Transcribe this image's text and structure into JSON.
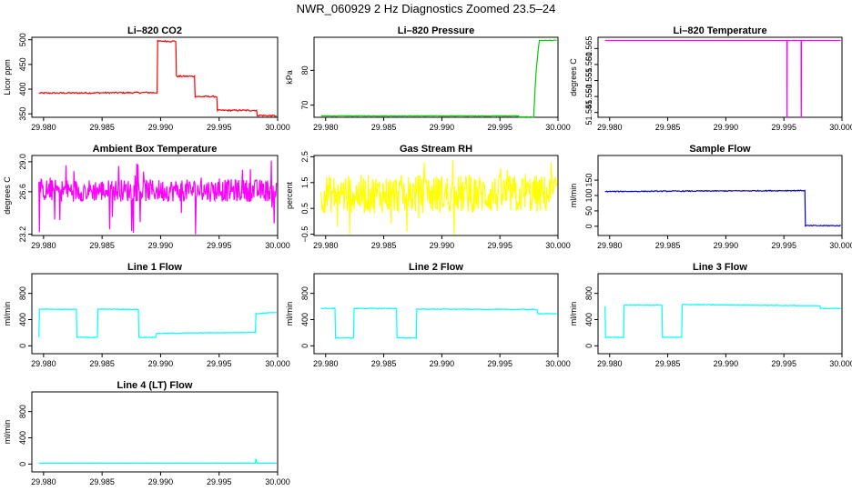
{
  "title": "NWR_060929  2 Hz Diagnostics Zoomed 23.5–24",
  "colors": {
    "red": "#ff0000",
    "green": "#00cc00",
    "magenta": "#ff00ff",
    "yellow": "#ffff00",
    "blue": "#0000cc",
    "cyan": "#00ffff"
  },
  "chart_data": [
    {
      "type": "line",
      "title": "Li–820 CO2",
      "ylabel": "Licor ppm",
      "xlim": [
        29.979,
        30.0
      ],
      "ylim": [
        343,
        505
      ],
      "xticks": [
        "29.980",
        "29.985",
        "29.990",
        "29.995",
        "30.000"
      ],
      "yticks": [
        {
          "v": 350,
          "t": "350"
        },
        {
          "v": 400,
          "t": "400"
        },
        {
          "v": 450,
          "t": "450"
        },
        {
          "v": 500,
          "t": "500"
        }
      ],
      "color": "red",
      "noise": 1.5,
      "x": [
        29.9796,
        29.9897,
        29.98975,
        29.9913,
        29.99135,
        29.9929,
        29.99295,
        29.9948,
        29.99485,
        29.9982,
        29.99825,
        29.9999
      ],
      "y": [
        392,
        393,
        497,
        497,
        426,
        426,
        385,
        385,
        357,
        357,
        347,
        346
      ]
    },
    {
      "type": "line",
      "title": "Li–820 Pressure",
      "ylabel": "kPa",
      "xlim": [
        29.979,
        30.0
      ],
      "ylim": [
        66.5,
        89.5
      ],
      "xticks": [
        "29.980",
        "29.985",
        "29.990",
        "29.995",
        "30.000"
      ],
      "yticks": [
        {
          "v": 70,
          "t": "70"
        },
        {
          "v": 80,
          "t": "80"
        }
      ],
      "color": "green",
      "noise": 0.08,
      "x": [
        29.9796,
        29.9966,
        29.99665,
        29.9979,
        29.9981,
        29.9983,
        29.9984,
        29.9999
      ],
      "y": [
        66.9,
        66.9,
        66.6,
        66.6,
        79,
        86,
        88.6,
        88.6
      ]
    },
    {
      "type": "line",
      "title": "Li–820 Temperature",
      "ylabel": "degrees C",
      "xlim": [
        29.979,
        30.0
      ],
      "ylim": [
        51.5435,
        51.5685
      ],
      "xticks": [
        "29.980",
        "29.985",
        "29.990",
        "29.995",
        "30.000"
      ],
      "yticks": [
        {
          "v": 51.545,
          "t": "51.545"
        },
        {
          "v": 51.55,
          "t": "51.550"
        },
        {
          "v": 51.555,
          "t": "51.555"
        },
        {
          "v": 51.56,
          "t": "51.560"
        },
        {
          "v": 51.565,
          "t": "51.565"
        }
      ],
      "color": "magenta",
      "noise": 0,
      "x": [
        29.9796,
        29.99525,
        29.99526,
        29.99527,
        29.99528,
        29.99648,
        29.99649,
        29.9965,
        29.99651,
        29.9999
      ],
      "y": [
        51.5675,
        51.5675,
        51.5435,
        51.5435,
        51.5675,
        51.5675,
        51.5435,
        51.5435,
        51.5675,
        51.5675
      ]
    },
    {
      "type": "line",
      "title": "Ambient Box Temperature",
      "ylabel": "degrees C",
      "xlim": [
        29.979,
        30.0
      ],
      "ylim": [
        23.1,
        29.5
      ],
      "xticks": [
        "29.980",
        "29.985",
        "29.990",
        "29.995",
        "30.000"
      ],
      "yticks": [
        {
          "v": 23.2,
          "t": "23.2"
        },
        {
          "v": 26.6,
          "t": "26.6"
        },
        {
          "v": 29.0,
          "t": "29.0"
        }
      ],
      "color": "magenta",
      "noise": 1.0,
      "band": [
        25.8,
        27.6
      ],
      "x": [
        29.9796,
        29.9999
      ],
      "y": [
        26.7,
        26.7
      ]
    },
    {
      "type": "line",
      "title": "Gas Stream RH",
      "ylabel": "percent",
      "xlim": [
        29.979,
        30.0
      ],
      "ylim": [
        -0.55,
        2.55
      ],
      "xticks": [
        "29.980",
        "29.985",
        "29.990",
        "29.995",
        "30.000"
      ],
      "yticks": [
        {
          "v": -0.5,
          "t": "−0.5"
        },
        {
          "v": 0.5,
          "t": "0.5"
        },
        {
          "v": 1.5,
          "t": "1.5"
        },
        {
          "v": 2.5,
          "t": "2.5"
        }
      ],
      "color": "yellow",
      "noise": 0.3,
      "band": [
        0.3,
        1.8
      ],
      "x": [
        29.9796,
        29.9999
      ],
      "y": [
        0.95,
        0.95
      ]
    },
    {
      "type": "line",
      "title": "Sample Flow",
      "ylabel": "ml/min",
      "xlim": [
        29.979,
        30.0
      ],
      "ylim": [
        -30,
        230
      ],
      "xticks": [
        "29.980",
        "29.985",
        "29.990",
        "29.995",
        "30.000"
      ],
      "yticks": [
        {
          "v": 0,
          "t": "0"
        },
        {
          "v": 50,
          "t": "50"
        },
        {
          "v": 100,
          "t": "100"
        },
        {
          "v": 150,
          "t": "150"
        }
      ],
      "color": "blue",
      "noise": 1.5,
      "x": [
        29.9796,
        29.9968,
        29.99685,
        29.9999
      ],
      "y": [
        113,
        116,
        2,
        2
      ]
    },
    {
      "type": "line",
      "title": "Line 1 Flow",
      "ylabel": "ml/min",
      "xlim": [
        29.979,
        30.0
      ],
      "ylim": [
        -120,
        1100
      ],
      "xticks": [
        "29.980",
        "29.985",
        "29.990",
        "29.995",
        "30.000"
      ],
      "yticks": [
        {
          "v": 0,
          "t": "0"
        },
        {
          "v": 400,
          "t": "400"
        },
        {
          "v": 800,
          "t": "800"
        }
      ],
      "color": "cyan",
      "noise": 5,
      "x": [
        29.9796,
        29.97965,
        29.9828,
        29.98285,
        29.9846,
        29.98465,
        29.9881,
        29.98815,
        29.9896,
        29.98965,
        29.9981,
        29.99815,
        29.9999
      ],
      "y": [
        130,
        560,
        555,
        130,
        130,
        560,
        555,
        130,
        130,
        190,
        205,
        490,
        510
      ]
    },
    {
      "type": "line",
      "title": "Line 2 Flow",
      "ylabel": "ml/min",
      "xlim": [
        29.979,
        30.0
      ],
      "ylim": [
        -120,
        1100
      ],
      "xticks": [
        "29.980",
        "29.985",
        "29.990",
        "29.995",
        "30.000"
      ],
      "yticks": [
        {
          "v": 0,
          "t": "0"
        },
        {
          "v": 400,
          "t": "400"
        },
        {
          "v": 800,
          "t": "800"
        }
      ],
      "color": "cyan",
      "noise": 5,
      "x": [
        29.9796,
        29.9808,
        29.98085,
        29.9824,
        29.98245,
        29.9861,
        29.98615,
        29.9878,
        29.98785,
        29.9982,
        29.99825,
        29.9999
      ],
      "y": [
        570,
        570,
        120,
        120,
        570,
        570,
        120,
        120,
        560,
        555,
        490,
        490
      ]
    },
    {
      "type": "line",
      "title": "Line 3 Flow",
      "ylabel": "ml/min",
      "xlim": [
        29.979,
        30.0
      ],
      "ylim": [
        -120,
        1100
      ],
      "xticks": [
        "29.980",
        "29.985",
        "29.990",
        "29.995",
        "30.000"
      ],
      "yticks": [
        {
          "v": 0,
          "t": "0"
        },
        {
          "v": 400,
          "t": "400"
        },
        {
          "v": 800,
          "t": "800"
        }
      ],
      "color": "cyan",
      "noise": 5,
      "x": [
        29.9796,
        29.97965,
        29.9812,
        29.98125,
        29.9845,
        29.98455,
        29.9862,
        29.98625,
        29.9981,
        29.99815,
        29.9999
      ],
      "y": [
        600,
        130,
        130,
        620,
        620,
        130,
        130,
        630,
        610,
        570,
        570
      ]
    },
    {
      "type": "line",
      "title": "Line 4 (LT) Flow",
      "ylabel": "ml/min",
      "xlim": [
        29.979,
        30.0
      ],
      "ylim": [
        -120,
        1100
      ],
      "xticks": [
        "29.980",
        "29.985",
        "29.990",
        "29.995",
        "30.000"
      ],
      "yticks": [
        {
          "v": 0,
          "t": "0"
        },
        {
          "v": 400,
          "t": "400"
        },
        {
          "v": 800,
          "t": "800"
        }
      ],
      "color": "cyan",
      "noise": 1,
      "x": [
        29.9796,
        29.9981,
        29.99815,
        29.9982,
        29.99825,
        29.9999
      ],
      "y": [
        12,
        12,
        80,
        30,
        12,
        12
      ]
    }
  ]
}
